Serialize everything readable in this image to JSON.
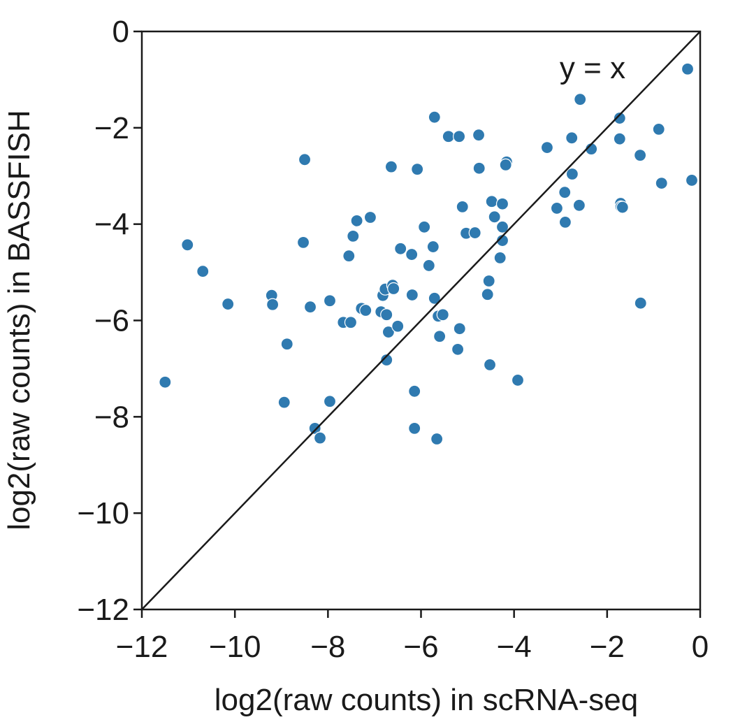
{
  "chart_data": {
    "type": "scatter",
    "title": "",
    "xlabel": "log2(raw counts) in scRNA-seq",
    "ylabel": "log2(raw counts)  in BASSFISH",
    "xlim": [
      -12,
      0
    ],
    "ylim": [
      -12,
      0
    ],
    "xticks": [
      -12,
      -10,
      -8,
      -6,
      -4,
      -2,
      0
    ],
    "yticks": [
      0,
      -2,
      -4,
      -6,
      -8,
      -10,
      -12
    ],
    "xtick_labels": [
      "−12",
      "−10",
      "−8",
      "−6",
      "−4",
      "−2",
      "0"
    ],
    "ytick_labels": [
      "0",
      "−2",
      "−4",
      "−6",
      "−8",
      "−10",
      "−12"
    ],
    "grid": false,
    "reference_line": {
      "label": "y = x",
      "slope": 1,
      "intercept": 0
    },
    "point_color": "#2f7ab0",
    "points": [
      [
        -11.5,
        -7.28
      ],
      [
        -11.02,
        -4.43
      ],
      [
        -10.69,
        -4.98
      ],
      [
        -10.15,
        -5.66
      ],
      [
        -9.21,
        -5.48
      ],
      [
        -9.19,
        -5.67
      ],
      [
        -8.88,
        -6.49
      ],
      [
        -8.94,
        -7.7
      ],
      [
        -8.5,
        -2.66
      ],
      [
        -8.53,
        -4.38
      ],
      [
        -8.38,
        -5.72
      ],
      [
        -8.28,
        -8.24
      ],
      [
        -8.17,
        -8.44
      ],
      [
        -7.96,
        -7.68
      ],
      [
        -7.96,
        -5.59
      ],
      [
        -7.67,
        -6.04
      ],
      [
        -7.51,
        -6.04
      ],
      [
        -7.55,
        -4.66
      ],
      [
        -7.46,
        -4.25
      ],
      [
        -7.38,
        -3.93
      ],
      [
        -7.09,
        -3.86
      ],
      [
        -7.28,
        -5.75
      ],
      [
        -7.19,
        -5.79
      ],
      [
        -6.86,
        -5.82
      ],
      [
        -6.82,
        -5.48
      ],
      [
        -6.77,
        -5.35
      ],
      [
        -6.74,
        -5.88
      ],
      [
        -6.7,
        -6.24
      ],
      [
        -6.74,
        -6.82
      ],
      [
        -6.64,
        -2.81
      ],
      [
        -6.61,
        -5.27
      ],
      [
        -6.59,
        -5.34
      ],
      [
        -6.5,
        -6.12
      ],
      [
        -6.44,
        -4.51
      ],
      [
        -6.2,
        -4.63
      ],
      [
        -6.19,
        -5.47
      ],
      [
        -6.14,
        -7.47
      ],
      [
        -6.14,
        -8.24
      ],
      [
        -6.08,
        -2.86
      ],
      [
        -5.93,
        -4.06
      ],
      [
        -5.83,
        -4.86
      ],
      [
        -5.71,
        -1.78
      ],
      [
        -5.74,
        -4.47
      ],
      [
        -5.71,
        -5.54
      ],
      [
        -5.63,
        -5.91
      ],
      [
        -5.6,
        -6.33
      ],
      [
        -5.53,
        -5.88
      ],
      [
        -5.66,
        -8.46
      ],
      [
        -5.41,
        -2.18
      ],
      [
        -5.18,
        -2.18
      ],
      [
        -5.11,
        -3.64
      ],
      [
        -5.17,
        -6.17
      ],
      [
        -5.21,
        -6.6
      ],
      [
        -5.03,
        -4.19
      ],
      [
        -4.84,
        -4.18
      ],
      [
        -4.76,
        -2.15
      ],
      [
        -4.75,
        -2.84
      ],
      [
        -4.57,
        -5.46
      ],
      [
        -4.54,
        -5.18
      ],
      [
        -4.52,
        -6.92
      ],
      [
        -4.48,
        -3.53
      ],
      [
        -4.42,
        -3.85
      ],
      [
        -4.3,
        -4.7
      ],
      [
        -4.25,
        -3.58
      ],
      [
        -4.25,
        -4.06
      ],
      [
        -4.25,
        -4.34
      ],
      [
        -4.16,
        -2.71
      ],
      [
        -4.18,
        -2.77
      ],
      [
        -3.92,
        -7.24
      ],
      [
        -3.29,
        -2.41
      ],
      [
        -3.08,
        -3.67
      ],
      [
        -2.91,
        -3.34
      ],
      [
        -2.9,
        -3.96
      ],
      [
        -2.76,
        -2.21
      ],
      [
        -2.75,
        -2.96
      ],
      [
        -2.6,
        -3.61
      ],
      [
        -2.58,
        -1.41
      ],
      [
        -2.34,
        -2.44
      ],
      [
        -1.73,
        -1.8
      ],
      [
        -1.73,
        -2.23
      ],
      [
        -1.71,
        -3.57
      ],
      [
        -1.7,
        -3.64
      ],
      [
        -1.67,
        -3.65
      ],
      [
        -1.29,
        -2.57
      ],
      [
        -1.28,
        -5.64
      ],
      [
        -0.89,
        -2.03
      ],
      [
        -0.83,
        -3.15
      ],
      [
        -0.27,
        -0.78
      ],
      [
        -0.18,
        -3.09
      ]
    ]
  }
}
